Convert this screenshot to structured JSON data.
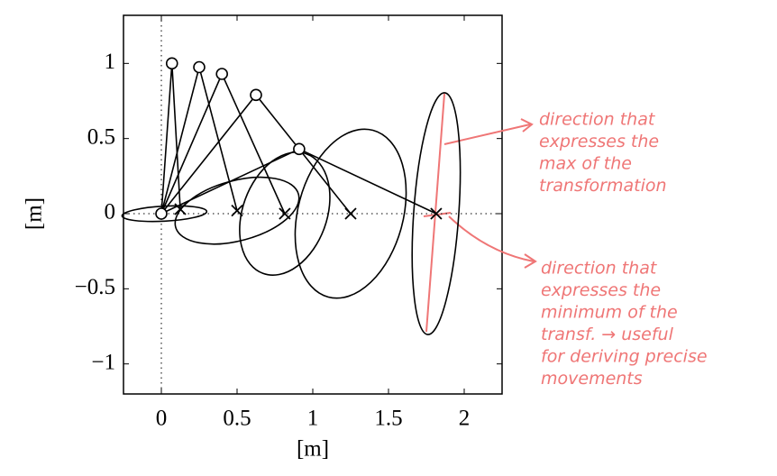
{
  "chart_data": {
    "type": "line",
    "xlabel": "[m]",
    "ylabel": "[m]",
    "xlim": [
      -0.25,
      2.25
    ],
    "ylim": [
      -1.2,
      1.32
    ],
    "xticks": [
      0,
      0.5,
      1,
      1.5,
      2
    ],
    "yticks": [
      {
        "value": -1,
        "label": "−1"
      },
      {
        "value": -0.5,
        "label": "−0.5"
      },
      0,
      0.5,
      1
    ],
    "base": {
      "x": 0,
      "y": 0
    },
    "elbows": {
      "x": [
        0.07,
        0.25,
        0.4,
        0.625,
        0.91
      ],
      "y": [
        1.0,
        0.975,
        0.93,
        0.79,
        0.43
      ]
    },
    "ends": {
      "x": [
        0.125,
        0.5,
        0.815,
        1.25,
        1.815
      ],
      "y": [
        0.03,
        0.02,
        0,
        0,
        0
      ]
    },
    "ellipses": {
      "cx": [
        0.02,
        0.5,
        0.815,
        1.25,
        1.815
      ],
      "cy": [
        0,
        0.02,
        0,
        0,
        0
      ],
      "a": [
        0.28,
        0.42,
        0.42,
        0.57,
        0.8
      ],
      "b": [
        0.05,
        0.2,
        0.28,
        0.35,
        0.15
      ],
      "angle": [
        3,
        15,
        70,
        75,
        86
      ]
    },
    "annotations": [
      [
        "direction that",
        "expresses the",
        "max of the",
        "transformation"
      ],
      [
        "direction that",
        "expresses the",
        "minimum of the",
        "transf. → useful",
        "for deriving precise",
        "movements"
      ]
    ]
  }
}
